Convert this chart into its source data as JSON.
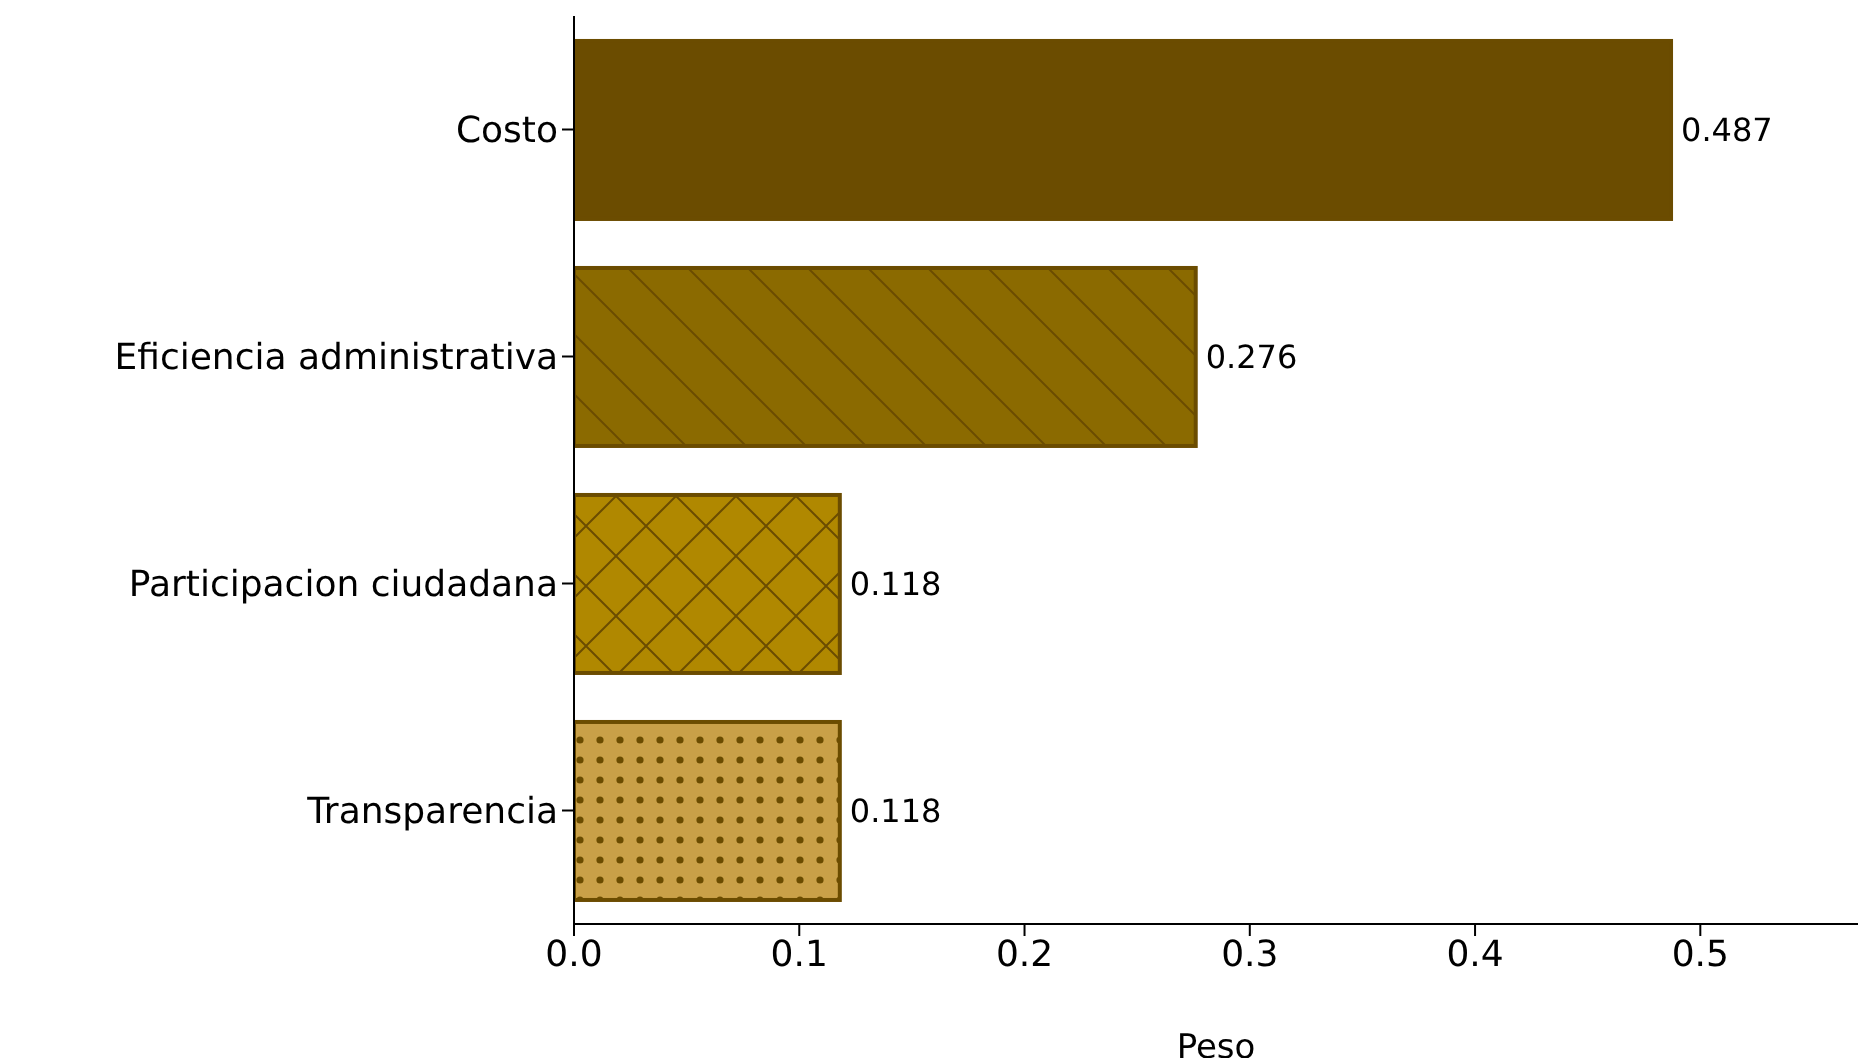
{
  "chart_data": {
    "type": "bar",
    "orientation": "horizontal",
    "xlabel": "Peso",
    "categories": [
      "Costo",
      "Eficiencia administrativa",
      "Participacion ciudadana",
      "Transparencia"
    ],
    "values": [
      0.487,
      0.276,
      0.118,
      0.118
    ],
    "colors": [
      "#6b4c00",
      "#8b6a00",
      "#b08800",
      "#c9a048"
    ],
    "xlim": [
      0,
      0.57
    ],
    "xticks": [
      {
        "value": 0,
        "label": "0.0"
      },
      0.1,
      0.2,
      0.3,
      0.4,
      0.5
    ],
    "data_labels": true
  }
}
